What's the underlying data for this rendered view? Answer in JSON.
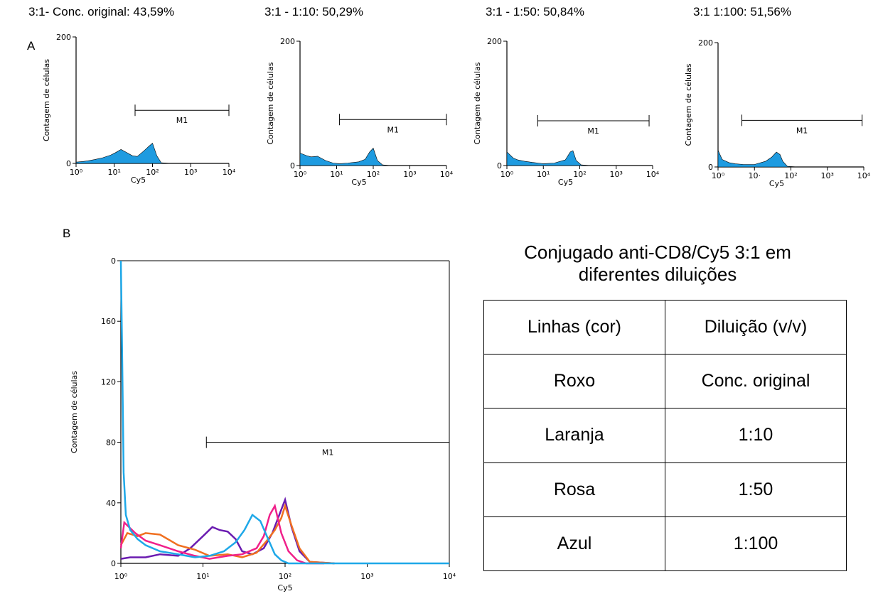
{
  "labels": [
    "A",
    "B"
  ],
  "chart_data": [
    {
      "type": "area",
      "title": "3:1- Conc. original: 43,59%",
      "xlabel": "Cy5",
      "ylabel": "Contagem de células",
      "color": "#1e9be0",
      "xscale": "log",
      "frame": "axes",
      "xlim": [
        1,
        10000
      ],
      "ylim": [
        0,
        200
      ],
      "xticks": [
        {
          "value": 1,
          "label": "10⁰"
        },
        {
          "value": 10,
          "label": "10¹"
        },
        {
          "value": 100,
          "label": "10²"
        },
        {
          "value": 1000,
          "label": "10³"
        },
        {
          "value": 10000,
          "label": "10⁴"
        }
      ],
      "yticks": [
        0,
        200
      ],
      "gate": {
        "label": "M1",
        "x": [
          35,
          10000
        ],
        "y": 84
      },
      "x": [
        1,
        1.5,
        2,
        3,
        5,
        8,
        10,
        15,
        20,
        30,
        40,
        60,
        80,
        100,
        130,
        170,
        300,
        10000
      ],
      "values": [
        2,
        3,
        4,
        6,
        9,
        13,
        16,
        22,
        18,
        12,
        11,
        20,
        27,
        32,
        12,
        1,
        0,
        0
      ]
    },
    {
      "type": "area",
      "title": "3:1 - 1:10: 50,29%",
      "xlabel": "Cy5",
      "ylabel": "Contagem de células",
      "color": "#1e9be0",
      "xscale": "log",
      "frame": "axes",
      "xlim": [
        1,
        10000
      ],
      "ylim": [
        0,
        200
      ],
      "xticks": [
        {
          "value": 1,
          "label": "10⁰"
        },
        {
          "value": 10,
          "label": "10¹"
        },
        {
          "value": 100,
          "label": "10²"
        },
        {
          "value": 1000,
          "label": "10³"
        },
        {
          "value": 10000,
          "label": "10⁴"
        }
      ],
      "yticks": [
        0,
        200
      ],
      "gate": {
        "label": "M1",
        "x": [
          12,
          10000
        ],
        "y": 74
      },
      "x": [
        1,
        1.5,
        2,
        3,
        5,
        8,
        12,
        20,
        40,
        60,
        80,
        100,
        130,
        180,
        300,
        10000
      ],
      "values": [
        20,
        16,
        14,
        15,
        8,
        4,
        3,
        4,
        6,
        10,
        22,
        28,
        8,
        1,
        0,
        0
      ]
    },
    {
      "type": "area",
      "title": "3:1 - 1:50: 50,84%",
      "xlabel": "Cy5",
      "ylabel": "Contagem de células",
      "color": "#1e9be0",
      "xscale": "log",
      "frame": "axes",
      "xlim": [
        1,
        10000
      ],
      "ylim": [
        0,
        200
      ],
      "xticks": [
        {
          "value": 1,
          "label": "10⁰"
        },
        {
          "value": 10,
          "label": "10¹"
        },
        {
          "value": 100,
          "label": "10²"
        },
        {
          "value": 1000,
          "label": "10³"
        },
        {
          "value": 10000,
          "label": "10⁴"
        }
      ],
      "yticks": [
        0,
        200
      ],
      "gate": {
        "label": "M1",
        "x": [
          7,
          8000
        ],
        "y": 72
      },
      "x": [
        1,
        1.5,
        2,
        3,
        5,
        10,
        20,
        40,
        55,
        65,
        80,
        110,
        200,
        10000
      ],
      "values": [
        22,
        12,
        9,
        7,
        5,
        3,
        4,
        9,
        22,
        24,
        8,
        1,
        0,
        0
      ]
    },
    {
      "type": "area",
      "title": "3:1 1:100: 51,56%",
      "xlabel": "Cy5",
      "ylabel": "Contagem de células",
      "color": "#1e9be0",
      "xscale": "log",
      "frame": "axes",
      "xlim": [
        1,
        10000
      ],
      "ylim": [
        0,
        200
      ],
      "xticks": [
        {
          "value": 1,
          "label": "10⁰"
        },
        {
          "value": 10,
          "label": "10·"
        },
        {
          "value": 100,
          "label": "10²"
        },
        {
          "value": 1000,
          "label": "10³"
        },
        {
          "value": 10000,
          "label": "10⁴"
        }
      ],
      "yticks": [
        0,
        200
      ],
      "gate": {
        "label": "M1",
        "x": [
          4.5,
          9000
        ],
        "y": 75
      },
      "x": [
        1,
        1.3,
        2,
        3,
        5,
        10,
        20,
        30,
        40,
        50,
        60,
        80,
        150,
        10000
      ],
      "values": [
        27,
        12,
        7,
        5,
        4,
        4,
        9,
        16,
        24,
        20,
        9,
        1,
        0,
        0
      ]
    },
    {
      "type": "line",
      "xlabel": "Cy5",
      "ylabel": "Contagem de células",
      "xscale": "log",
      "frame": "box",
      "xlim": [
        1,
        10000
      ],
      "ylim": [
        0,
        200
      ],
      "xticks": [
        {
          "value": 1,
          "label": "10⁰"
        },
        {
          "value": 10,
          "label": "10¹"
        },
        {
          "value": 100,
          "label": "10²"
        },
        {
          "value": 1000,
          "label": "10³"
        },
        {
          "value": 10000,
          "label": "10⁴"
        }
      ],
      "yticks": [
        0,
        40,
        80,
        120,
        160,
        {
          "value": 200,
          "label": "0"
        }
      ],
      "gate": {
        "label": "M1",
        "x": [
          11,
          10000
        ],
        "y": 80
      },
      "series": [
        {
          "color": "#6a1bb0",
          "x": [
            1,
            1.3,
            2,
            3,
            5,
            7,
            10,
            13,
            16,
            20,
            25,
            30,
            40,
            55,
            70,
            85,
            100,
            120,
            150,
            200,
            400
          ],
          "values": [
            3,
            4,
            4,
            6,
            5,
            10,
            18,
            24,
            22,
            21,
            16,
            8,
            6,
            10,
            20,
            32,
            42,
            24,
            8,
            1,
            0
          ]
        },
        {
          "color": "#f07020",
          "x": [
            1,
            1.2,
            1.6,
            2,
            3,
            5,
            8,
            12,
            20,
            30,
            45,
            60,
            75,
            90,
            100,
            120,
            150,
            200,
            400
          ],
          "values": [
            12,
            20,
            18,
            20,
            19,
            12,
            9,
            5,
            6,
            4,
            7,
            15,
            22,
            30,
            38,
            25,
            10,
            1,
            0
          ]
        },
        {
          "color": "#f0208a",
          "x": [
            1,
            1.1,
            1.5,
            2,
            3,
            5,
            8,
            12,
            20,
            30,
            45,
            55,
            65,
            75,
            90,
            110,
            140,
            180,
            300
          ],
          "values": [
            10,
            27,
            20,
            15,
            12,
            8,
            5,
            3,
            5,
            6,
            10,
            18,
            32,
            38,
            20,
            8,
            2,
            0,
            0
          ]
        },
        {
          "color": "#1ea8e8",
          "x": [
            1,
            1.03,
            1.08,
            1.15,
            1.3,
            1.6,
            2,
            3,
            5,
            8,
            12,
            18,
            25,
            32,
            40,
            50,
            60,
            75,
            90,
            110,
            10000
          ],
          "values": [
            200,
            150,
            60,
            32,
            22,
            16,
            12,
            8,
            6,
            4,
            5,
            8,
            14,
            22,
            32,
            28,
            18,
            6,
            2,
            0,
            0
          ]
        }
      ]
    }
  ],
  "table": {
    "caption": "Conjugado anti-CD8/Cy5 3:1 em diferentes diluições",
    "header": [
      "Linhas (cor)",
      "Diluição (v/v)"
    ],
    "rows": [
      [
        "Roxo",
        "Conc. original"
      ],
      [
        "Laranja",
        "1:10"
      ],
      [
        "Rosa",
        "1:50"
      ],
      [
        "Azul",
        "1:100"
      ]
    ]
  }
}
